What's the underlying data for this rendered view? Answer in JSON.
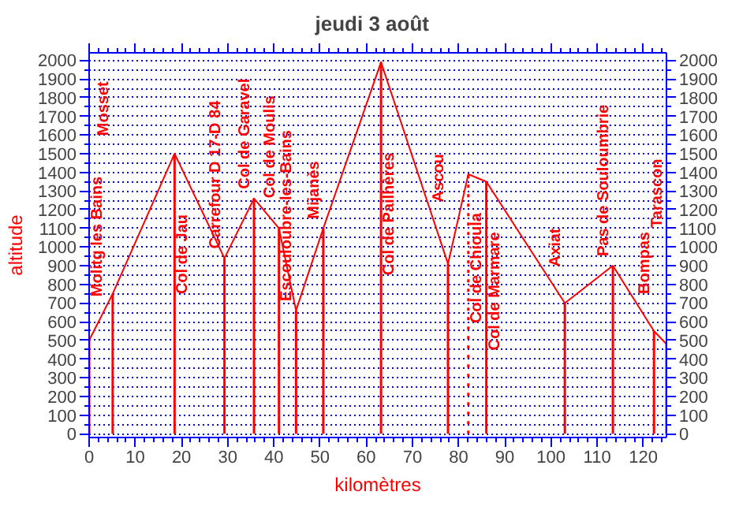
{
  "chart_data": {
    "type": "line",
    "title": "jeudi  3  août",
    "xlabel": "kilomètres",
    "ylabel": "altitude",
    "x": [
      0,
      5.1,
      18.5,
      29.3,
      35.7,
      41.1,
      44.8,
      50.7,
      63.2,
      77.7,
      82.1,
      86.0,
      103.0,
      113.4,
      122.3,
      125
    ],
    "series": [
      {
        "color": "#ff0000",
        "values": [
          500,
          750,
          1500,
          940,
          1260,
          1100,
          660,
          1100,
          1990,
          910,
          1390,
          1350,
          700,
          900,
          550,
          480
        ]
      }
    ],
    "xlim": [
      0,
      125
    ],
    "ylim": [
      -20,
      2040
    ],
    "y2lim": [
      -20,
      2040
    ],
    "xticks": [
      0,
      10,
      20,
      30,
      40,
      50,
      60,
      70,
      80,
      90,
      100,
      110,
      120,
      {
        "value": 2,
        "label": null
      },
      {
        "value": 4,
        "label": null
      },
      {
        "value": 6,
        "label": null
      },
      {
        "value": 8,
        "label": null
      },
      {
        "value": 12,
        "label": null
      },
      {
        "value": 14,
        "label": null
      },
      {
        "value": 16,
        "label": null
      },
      {
        "value": 18,
        "label": null
      },
      {
        "value": 22,
        "label": null
      },
      {
        "value": 24,
        "label": null
      },
      {
        "value": 26,
        "label": null
      },
      {
        "value": 28,
        "label": null
      },
      {
        "value": 32,
        "label": null
      },
      {
        "value": 34,
        "label": null
      },
      {
        "value": 36,
        "label": null
      },
      {
        "value": 38,
        "label": null
      },
      {
        "value": 42,
        "label": null
      },
      {
        "value": 44,
        "label": null
      },
      {
        "value": 46,
        "label": null
      },
      {
        "value": 48,
        "label": null
      },
      {
        "value": 52,
        "label": null
      },
      {
        "value": 54,
        "label": null
      },
      {
        "value": 56,
        "label": null
      },
      {
        "value": 58,
        "label": null
      },
      {
        "value": 62,
        "label": null
      },
      {
        "value": 64,
        "label": null
      },
      {
        "value": 66,
        "label": null
      },
      {
        "value": 68,
        "label": null
      },
      {
        "value": 72,
        "label": null
      },
      {
        "value": 74,
        "label": null
      },
      {
        "value": 76,
        "label": null
      },
      {
        "value": 78,
        "label": null
      },
      {
        "value": 82,
        "label": null
      },
      {
        "value": 84,
        "label": null
      },
      {
        "value": 86,
        "label": null
      },
      {
        "value": 88,
        "label": null
      },
      {
        "value": 92,
        "label": null
      },
      {
        "value": 94,
        "label": null
      },
      {
        "value": 96,
        "label": null
      },
      {
        "value": 98,
        "label": null
      },
      {
        "value": 102,
        "label": null
      },
      {
        "value": 104,
        "label": null
      },
      {
        "value": 106,
        "label": null
      },
      {
        "value": 108,
        "label": null
      },
      {
        "value": 112,
        "label": null
      },
      {
        "value": 114,
        "label": null
      },
      {
        "value": 116,
        "label": null
      },
      {
        "value": 118,
        "label": null
      },
      {
        "value": 122,
        "label": null
      },
      {
        "value": 124,
        "label": null
      }
    ],
    "yticks": [
      0,
      100,
      200,
      300,
      400,
      500,
      600,
      700,
      800,
      900,
      1000,
      1100,
      1200,
      1300,
      1400,
      1500,
      1600,
      1700,
      1800,
      1900,
      2000,
      {
        "value": 50,
        "label": null
      },
      {
        "value": 150,
        "label": null
      },
      {
        "value": 250,
        "label": null
      },
      {
        "value": 350,
        "label": null
      },
      {
        "value": 450,
        "label": null
      },
      {
        "value": 550,
        "label": null
      },
      {
        "value": 650,
        "label": null
      },
      {
        "value": 750,
        "label": null
      },
      {
        "value": 850,
        "label": null
      },
      {
        "value": 950,
        "label": null
      },
      {
        "value": 1050,
        "label": null
      },
      {
        "value": 1150,
        "label": null
      },
      {
        "value": 1250,
        "label": null
      },
      {
        "value": 1350,
        "label": null
      },
      {
        "value": 1450,
        "label": null
      },
      {
        "value": 1550,
        "label": null
      },
      {
        "value": 1650,
        "label": null
      },
      {
        "value": 1750,
        "label": null
      },
      {
        "value": 1850,
        "label": null
      },
      {
        "value": 1950,
        "label": null
      }
    ],
    "y2ticks": [
      0,
      100,
      200,
      300,
      400,
      500,
      600,
      700,
      800,
      900,
      1000,
      1100,
      1200,
      1300,
      1400,
      1500,
      1600,
      1700,
      1800,
      1900,
      2000,
      {
        "value": 50,
        "label": null
      },
      {
        "value": 150,
        "label": null
      },
      {
        "value": 250,
        "label": null
      },
      {
        "value": 350,
        "label": null
      },
      {
        "value": 450,
        "label": null
      },
      {
        "value": 550,
        "label": null
      },
      {
        "value": 650,
        "label": null
      },
      {
        "value": 750,
        "label": null
      },
      {
        "value": 850,
        "label": null
      },
      {
        "value": 950,
        "label": null
      },
      {
        "value": 1050,
        "label": null
      },
      {
        "value": 1150,
        "label": null
      },
      {
        "value": 1250,
        "label": null
      },
      {
        "value": 1350,
        "label": null
      },
      {
        "value": 1450,
        "label": null
      },
      {
        "value": 1550,
        "label": null
      },
      {
        "value": 1650,
        "label": null
      },
      {
        "value": 1750,
        "label": null
      },
      {
        "value": 1850,
        "label": null
      },
      {
        "value": 1950,
        "label": null
      }
    ],
    "grid": "y",
    "ref_lines": [
      {
        "axis": "x",
        "value": 0,
        "label": "Molitg les Bains",
        "color": "#ff0000"
      },
      {
        "axis": "x",
        "value": 5.1,
        "label": "Mosset",
        "color": "#ff0000"
      },
      {
        "axis": "x",
        "value": 18.5,
        "label": "Col de Jau",
        "color": "#ff0000"
      },
      {
        "axis": "x",
        "value": 29.3,
        "label": "Carrefour D 17-D 84",
        "color": "#ff0000"
      },
      {
        "axis": "x",
        "value": 35.7,
        "label": "Col de Garavel",
        "color": "#ff0000"
      },
      {
        "axis": "x",
        "value": 41.1,
        "label": "Col de Moulis",
        "color": "#ff0000"
      },
      {
        "axis": "x",
        "value": 44.8,
        "label": "Escouloubre-les-Bains",
        "color": "#ff0000"
      },
      {
        "axis": "x",
        "value": 50.7,
        "label": "Mijanès",
        "color": "#ff0000"
      },
      {
        "axis": "x",
        "value": 63.2,
        "label": "Col de Pailhères",
        "color": "#ff0000"
      },
      {
        "axis": "x",
        "value": 77.7,
        "label": "Ascou",
        "color": "#ff0000"
      },
      {
        "axis": "x",
        "value": 82.1,
        "label": "Col de Chioula",
        "color": "#ff0000",
        "line_style": "dotted"
      },
      {
        "axis": "x",
        "value": 86.0,
        "label": "Col de Marmare",
        "color": "#ff0000"
      },
      {
        "axis": "x",
        "value": 103.0,
        "label": "Axiat",
        "color": "#ff0000"
      },
      {
        "axis": "x",
        "value": 113.4,
        "label": "Pas de Souloumbrie",
        "color": "#ff0000"
      },
      {
        "axis": "x",
        "value": 122.3,
        "label": "Bompas",
        "color": "#ff0000"
      },
      {
        "axis": "x",
        "value": 125,
        "label": "Tarascon",
        "color": "#ff0000"
      }
    ]
  }
}
